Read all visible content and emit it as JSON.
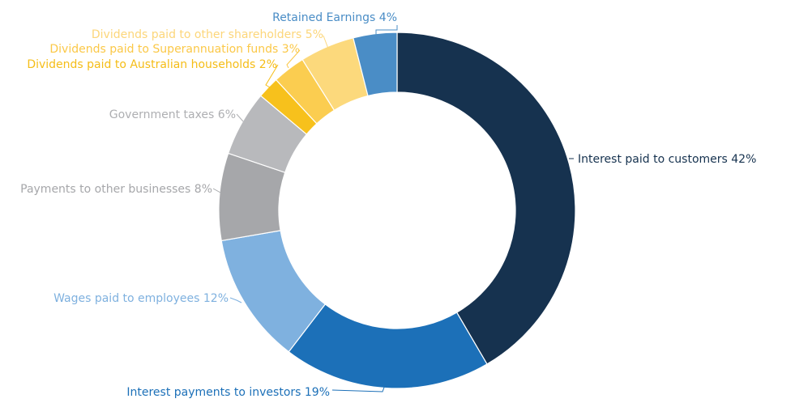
{
  "chart_data": {
    "type": "pie",
    "donut": true,
    "title": "",
    "slices": [
      {
        "label": "Interest paid to customers 42%",
        "value": 42,
        "color": "#16324f",
        "label_color": "#16324f"
      },
      {
        "label": "Interest payments to investors 19%",
        "value": 19,
        "color": "#1c70b8",
        "label_color": "#1c70b8"
      },
      {
        "label": "Wages paid to employees 12%",
        "value": 12,
        "color": "#7fb1df",
        "label_color": "#7fb1df"
      },
      {
        "label": "Payments to other businesses 8%",
        "value": 8,
        "color": "#a6a7aa",
        "label_color": "#a6a7aa"
      },
      {
        "label": "Government taxes 6%",
        "value": 6,
        "color": "#b8b9bc",
        "label_color": "#aeafb2"
      },
      {
        "label": "Dividends paid to Australian households 2%",
        "value": 2,
        "color": "#f7c11c",
        "label_color": "#f5bd17"
      },
      {
        "label": "Dividends paid to Superannuation funds 3%",
        "value": 3,
        "color": "#fbcd50",
        "label_color": "#fbc847"
      },
      {
        "label": "Dividends paid to other shareholders 5%",
        "value": 5,
        "color": "#fcd97c",
        "label_color": "#fcd67a"
      },
      {
        "label": "Retained Earnings 4%",
        "value": 4,
        "color": "#4a8dc6",
        "label_color": "#4a8dc6"
      }
    ]
  }
}
